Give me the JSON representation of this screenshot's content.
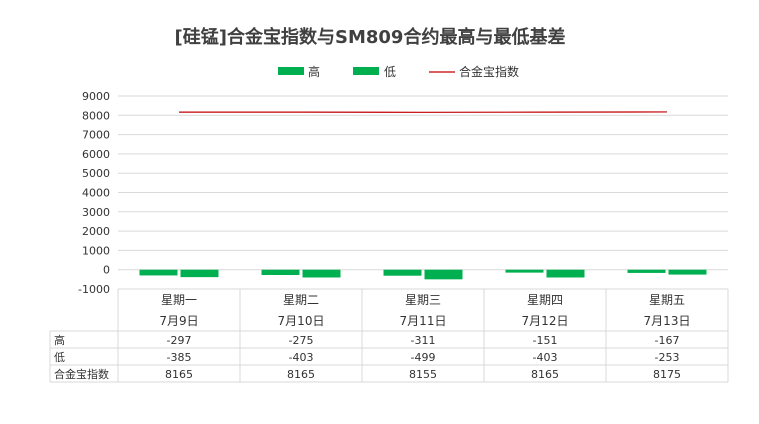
{
  "chart_data": {
    "type": "bar",
    "title": "[硅锰]合金宝指数与SM809合约最高与最低基差",
    "categories": [
      "星期一",
      "星期二",
      "星期三",
      "星期四",
      "星期五"
    ],
    "dates": [
      "7月9日",
      "7月10日",
      "7月11日",
      "7月12日",
      "7月13日"
    ],
    "series": [
      {
        "name": "高",
        "kind": "bar",
        "color": "#00b050",
        "values": [
          -297,
          -275,
          -311,
          -151,
          -167
        ]
      },
      {
        "name": "低",
        "kind": "bar",
        "color": "#00b050",
        "values": [
          -385,
          -403,
          -499,
          -403,
          -253
        ]
      },
      {
        "name": "合金宝指数",
        "kind": "line",
        "color": "#c00000",
        "values": [
          8165,
          8165,
          8155,
          8165,
          8175
        ]
      }
    ],
    "ylim": [
      -1000,
      9000
    ],
    "yticks": [
      9000,
      8000,
      7000,
      6000,
      5000,
      4000,
      3000,
      2000,
      1000,
      0,
      -1000
    ],
    "grid": true,
    "legend": "top"
  }
}
